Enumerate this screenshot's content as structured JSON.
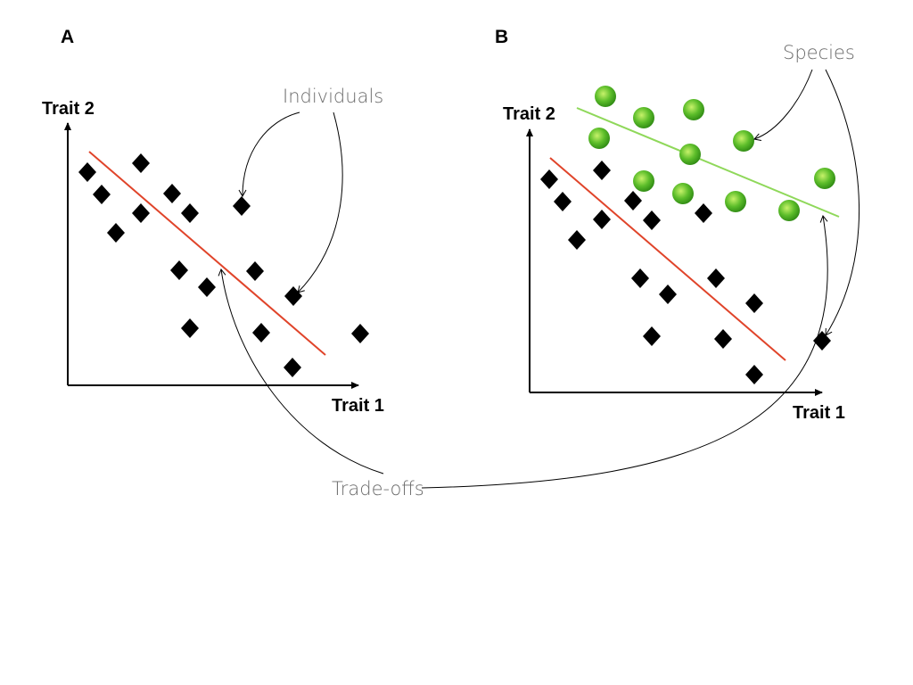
{
  "figure": {
    "panel_a": {
      "letter": "A",
      "x_label": "Trait 1",
      "y_label": "Trait 2"
    },
    "panel_b": {
      "letter": "B",
      "x_label": "Trait 1",
      "y_label": "Trait 2"
    },
    "annotations": {
      "individuals": "Individuals",
      "species": "Species",
      "trade_offs": "Trade-offs"
    },
    "colors": {
      "individual_marker": "#000000",
      "individual_tradeoff_line": "#e0442a",
      "species_marker": "#5cbd2a",
      "species_tradeoff_line": "#8fd85a",
      "annotation_text": "#6b6b6b"
    }
  }
}
